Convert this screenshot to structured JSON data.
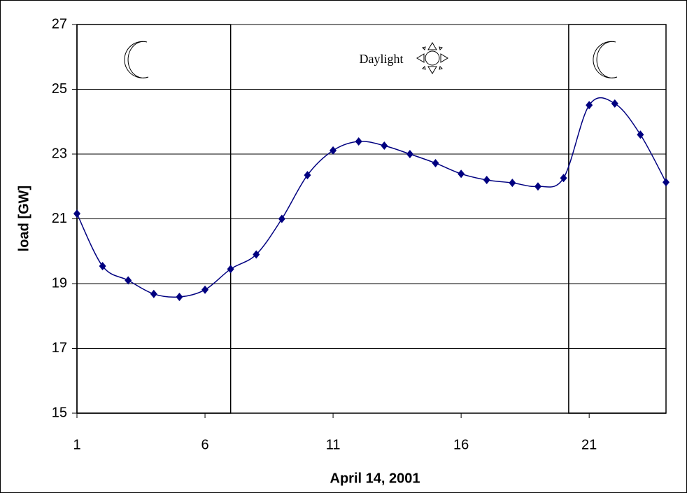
{
  "chart_data": {
    "type": "line",
    "x_label": "April 14, 2001",
    "y_label": "load [GW]",
    "annotation": "Daylight",
    "x": [
      1,
      2,
      3,
      4,
      5,
      6,
      7,
      8,
      9,
      10,
      11,
      12,
      13,
      14,
      15,
      16,
      17,
      18,
      19,
      20,
      21,
      22,
      23,
      24
    ],
    "series": [
      {
        "name": "load",
        "color": "#000080",
        "values": [
          21.16,
          19.54,
          19.1,
          18.68,
          18.59,
          18.81,
          19.45,
          19.9,
          21.0,
          22.35,
          23.11,
          23.39,
          23.26,
          23.0,
          22.72,
          22.39,
          22.2,
          22.11,
          22.0,
          22.26,
          24.51,
          24.56,
          23.6,
          22.13
        ]
      }
    ],
    "night_periods": [
      {
        "start": 1,
        "end": 7
      },
      {
        "start": 20.2,
        "end": 24
      }
    ],
    "xlim": [
      1,
      24
    ],
    "xticks": [
      1,
      6,
      11,
      16,
      21
    ],
    "ylim": [
      15,
      27
    ],
    "yticks": [
      15,
      17,
      19,
      21,
      23,
      25,
      27
    ],
    "grid": true
  }
}
